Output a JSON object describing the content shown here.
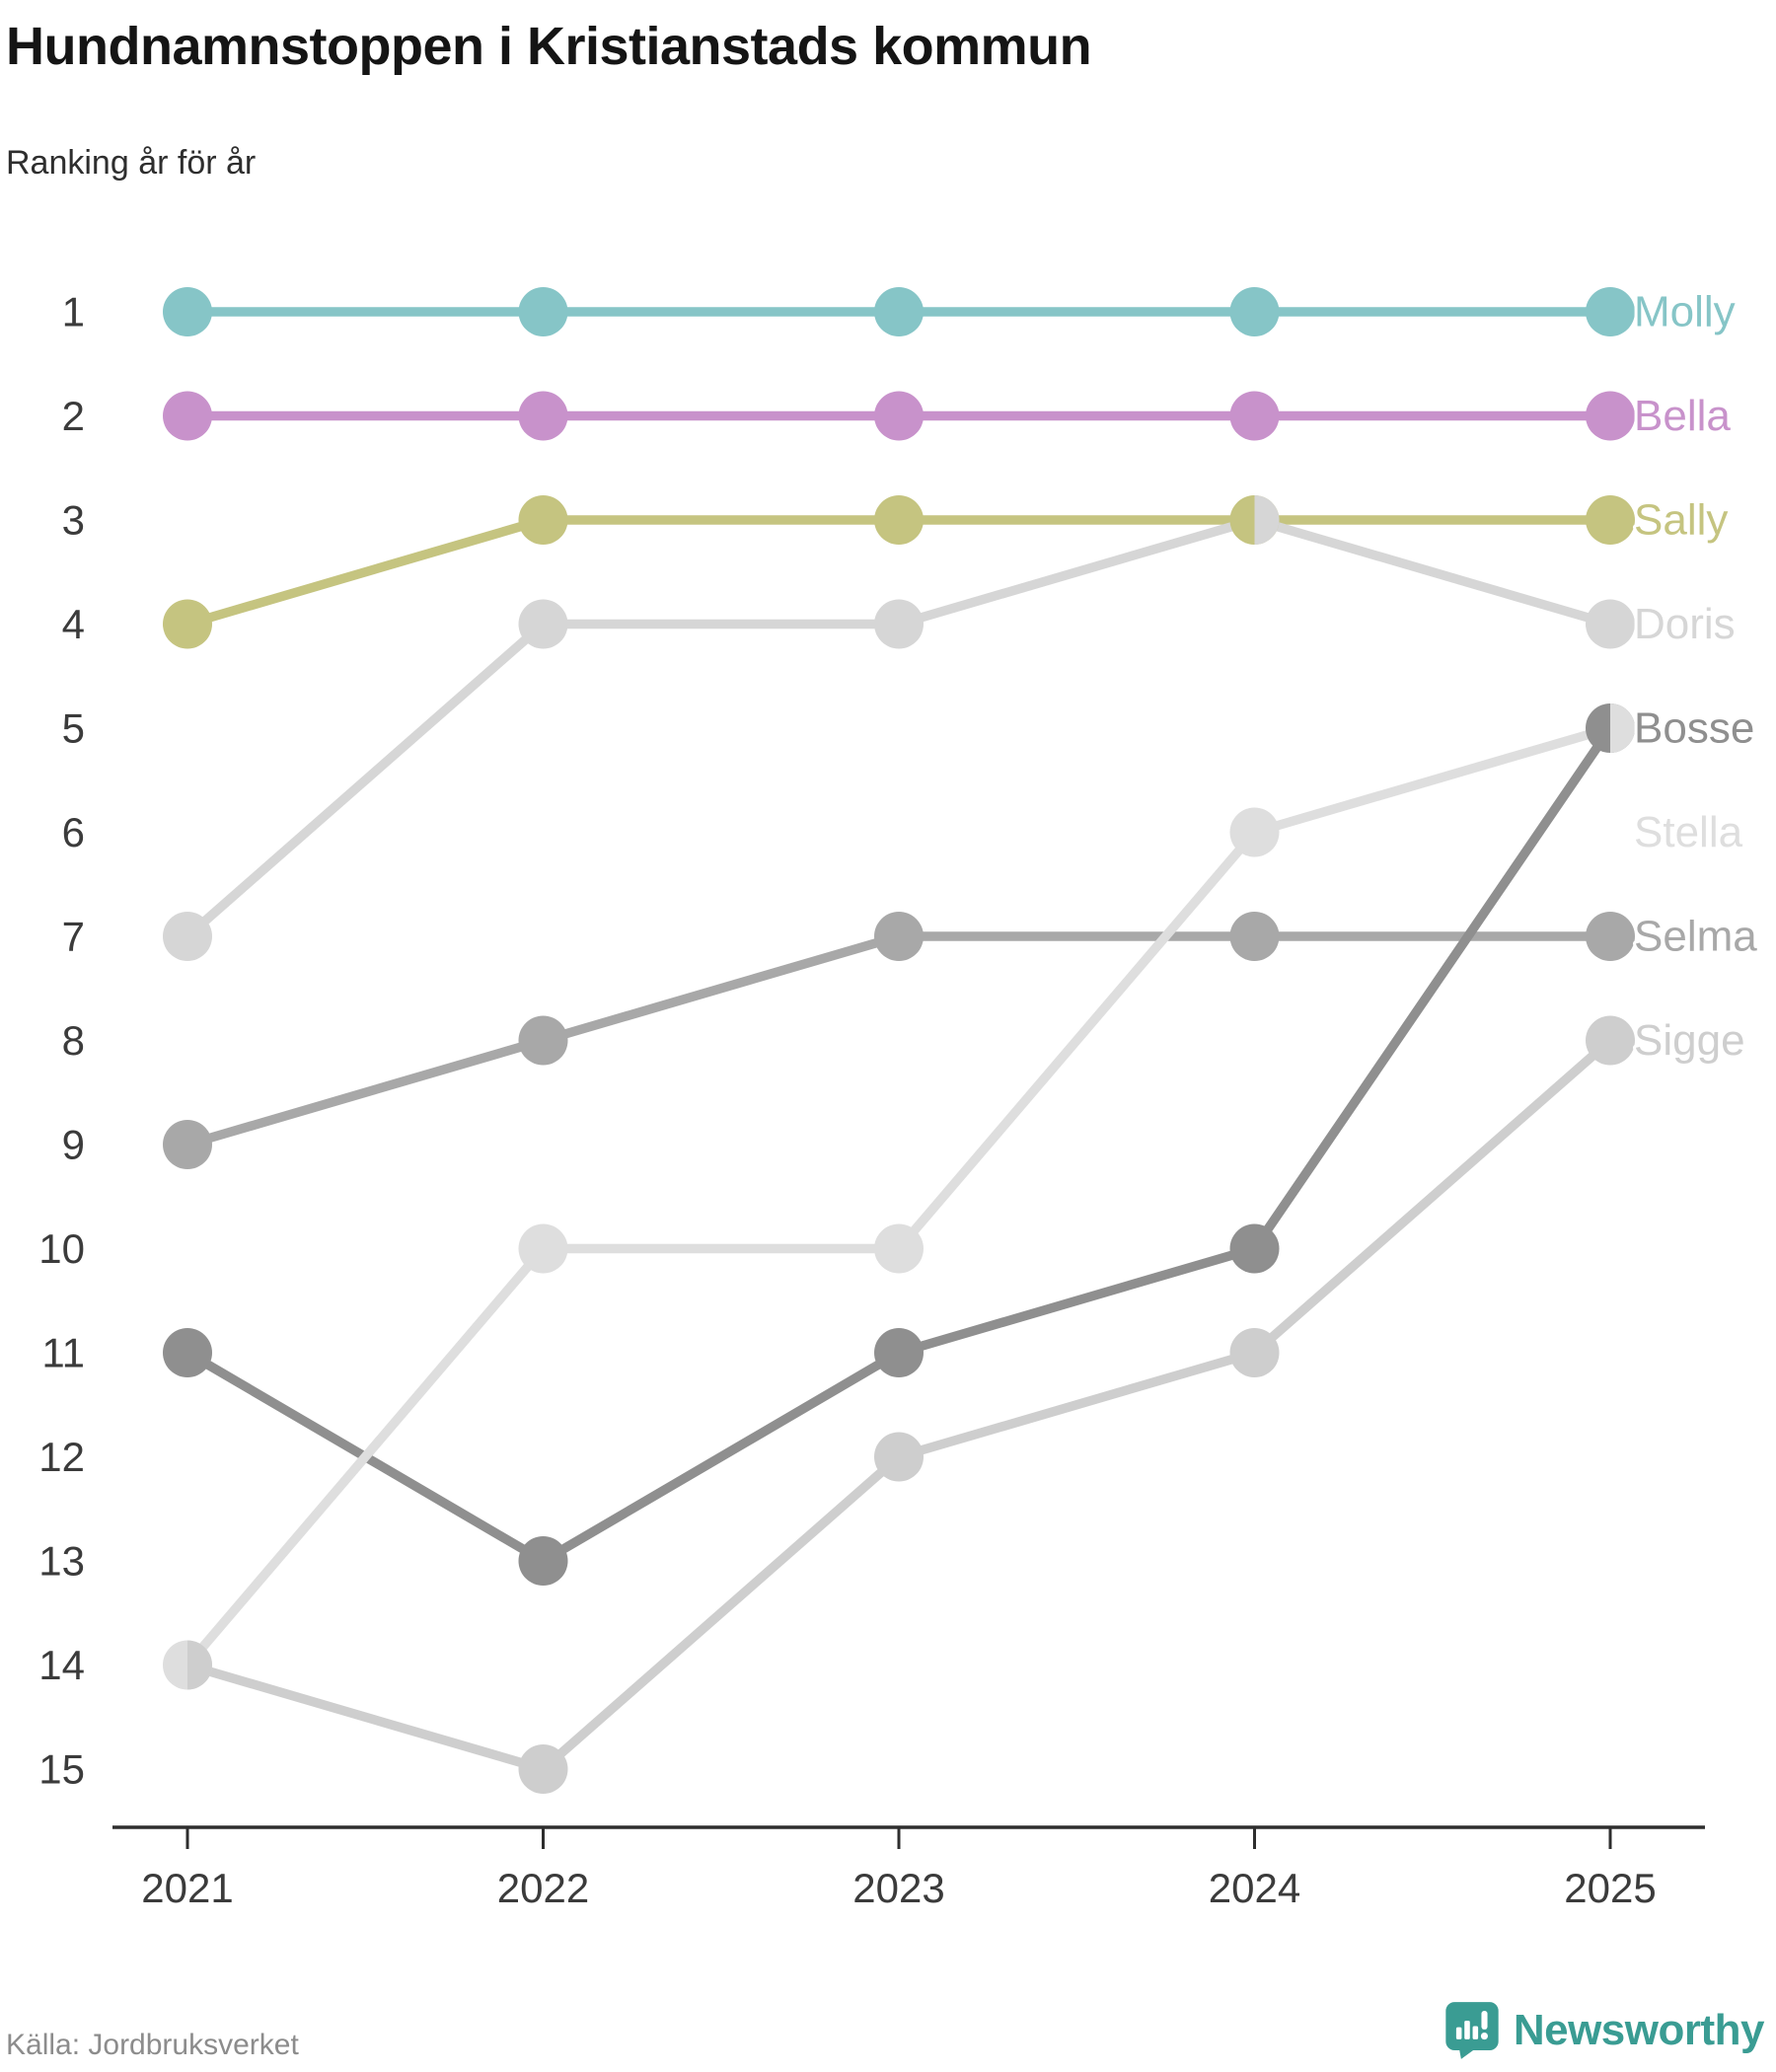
{
  "header": {
    "title": "Hundnamnstoppen i Kristianstads kommun",
    "subtitle": "Ranking år för år"
  },
  "footer": {
    "source": "Källa: Jordbruksverket",
    "brand": "Newsworthy"
  },
  "colors": {
    "axis": "#2e2e2e",
    "tick_label": "#3b3b3b",
    "source_text": "#8c8c8c",
    "brand_teal": "#3a9c93",
    "background": "#ffffff"
  },
  "chart_data": {
    "type": "line",
    "subtype": "bump-ranking",
    "title": "Hundnamnstoppen i Kristianstads kommun",
    "subtitle": "Ranking år för år",
    "xlabel": "",
    "ylabel": "",
    "x": [
      2021,
      2022,
      2023,
      2024,
      2025
    ],
    "y_axis": {
      "inverted": true,
      "min": 1,
      "max": 15,
      "ticks": [
        1,
        2,
        3,
        4,
        5,
        6,
        7,
        8,
        9,
        10,
        11,
        12,
        13,
        14,
        15
      ]
    },
    "grid": false,
    "legend_position": "right-end-labels",
    "series": [
      {
        "name": "Molly",
        "color": "#86c5c7",
        "values": [
          1,
          1,
          1,
          1,
          1
        ],
        "label_slot": 1
      },
      {
        "name": "Bella",
        "color": "#c892cb",
        "values": [
          2,
          2,
          2,
          2,
          2
        ],
        "label_slot": 2
      },
      {
        "name": "Sally",
        "color": "#c5c480",
        "values": [
          4,
          3,
          3,
          3,
          3
        ],
        "label_slot": 3
      },
      {
        "name": "Doris",
        "color": "#d6d6d6",
        "values": [
          7,
          4,
          4,
          3,
          4
        ],
        "label_slot": 4
      },
      {
        "name": "Bosse",
        "color": "#8f8f8f",
        "values": [
          11,
          13,
          11,
          10,
          5
        ],
        "label_slot": 5
      },
      {
        "name": "Stella",
        "color": "#dedede",
        "values": [
          14,
          10,
          10,
          6,
          5
        ],
        "label_slot": 6
      },
      {
        "name": "Selma",
        "color": "#a8a8a8",
        "values": [
          9,
          8,
          7,
          7,
          7
        ],
        "label_slot": 7
      },
      {
        "name": "Sigge",
        "color": "#cecece",
        "values": [
          14,
          15,
          12,
          11,
          8
        ],
        "label_slot": 8
      }
    ],
    "ties": [
      {
        "x": 2021,
        "rank": 14,
        "left": "Stella",
        "right": "Sigge"
      },
      {
        "x": 2024,
        "rank": 3,
        "left": "Sally",
        "right": "Doris"
      },
      {
        "x": 2025,
        "rank": 5,
        "left": "Bosse",
        "right": "Stella"
      }
    ],
    "draw_order": [
      "Molly",
      "Bella",
      "Sally",
      "Selma",
      "Bosse",
      "Doris",
      "Sigge",
      "Stella"
    ]
  }
}
